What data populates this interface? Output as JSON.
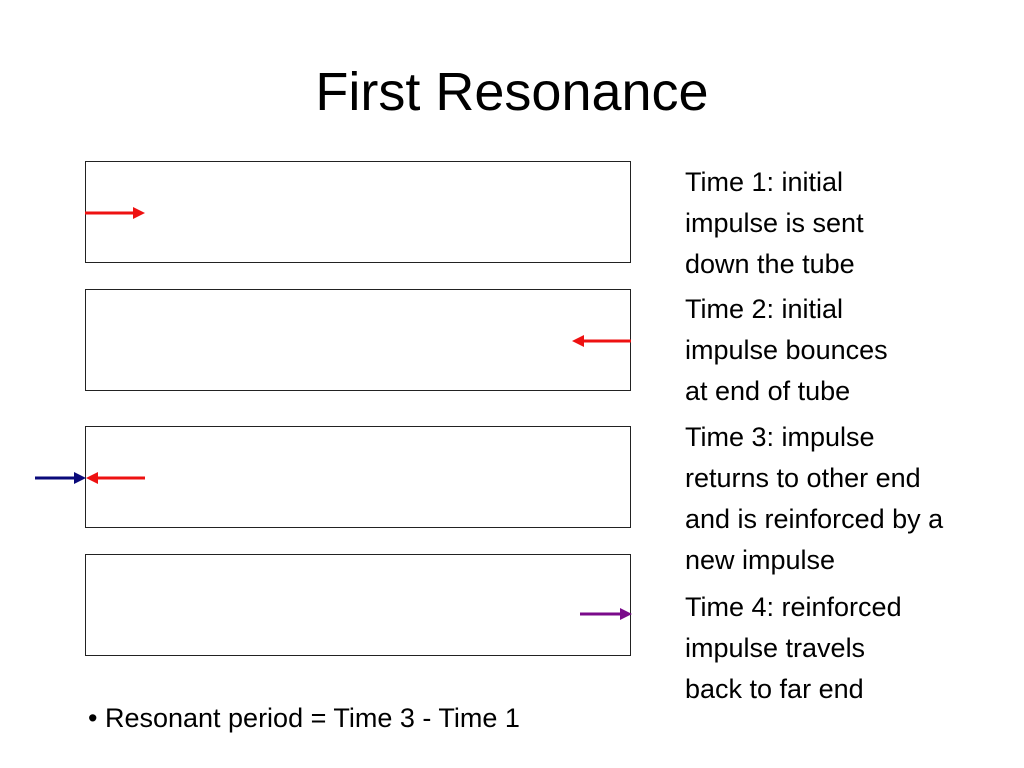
{
  "title": "First Resonance",
  "steps": [
    {
      "line1": "Time 1: initial",
      "line2": "impulse is sent",
      "line3": "down the tube",
      "line4": ""
    },
    {
      "line1": "Time 2: initial",
      "line2": "impulse bounces",
      "line3": "at end of tube",
      "line4": ""
    },
    {
      "line1": "Time 3: impulse",
      "line2": "returns to other end",
      "line3": "and is reinforced by a",
      "line4": "new impulse"
    },
    {
      "line1": "Time 4: reinforced",
      "line2": "impulse travels",
      "line3": "back to far end",
      "line4": ""
    }
  ],
  "bullet": "• Resonant period = Time 3 - Time 1",
  "colors": {
    "impulse": "#ee1111",
    "new_impulse": "#0a0a7a",
    "reinforced_impulse": "#7a0a8a"
  }
}
